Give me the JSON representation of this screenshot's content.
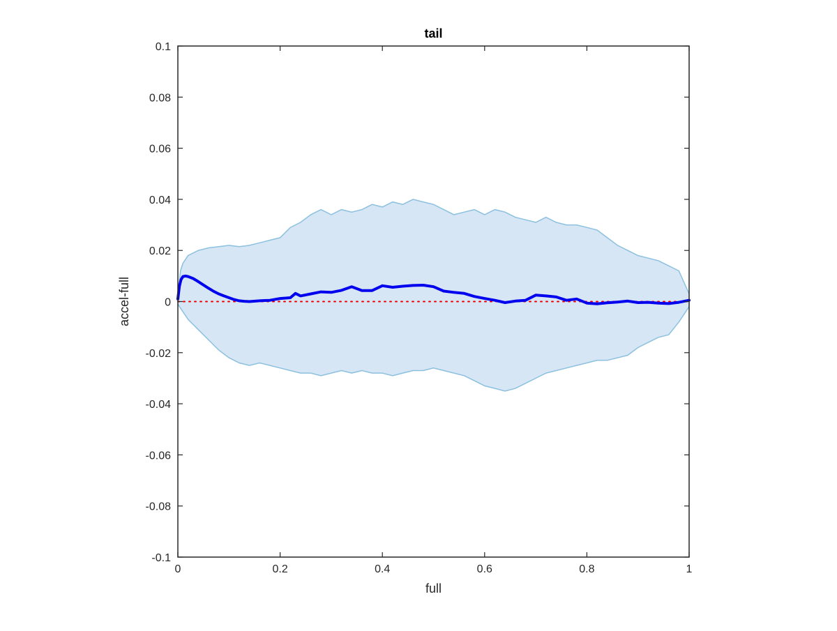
{
  "chart_data": {
    "type": "area",
    "title": "tail",
    "xlabel": "full",
    "ylabel": "accel-full",
    "xlim": [
      0,
      1
    ],
    "ylim": [
      -0.1,
      0.1
    ],
    "grid": false,
    "legend": "none",
    "x_ticks": [
      0,
      0.2,
      0.4,
      0.6,
      0.8,
      1
    ],
    "x_tick_labels": [
      "0",
      "0.2",
      "0.4",
      "0.6",
      "0.8",
      "1"
    ],
    "y_ticks": [
      -0.1,
      -0.08,
      -0.06,
      -0.04,
      -0.02,
      0,
      0.02,
      0.04,
      0.06,
      0.08,
      0.1
    ],
    "y_tick_labels": [
      "-0.1",
      "-0.08",
      "-0.06",
      "-0.04",
      "-0.02",
      "0",
      "0.02",
      "0.04",
      "0.06",
      "0.08",
      "0.1"
    ],
    "colors": {
      "band_fill": "#d6e6f4",
      "band_edge": "#8cc0df",
      "mean_line": "#0000ee",
      "zero_line": "#ee0000",
      "axes": "#262626"
    },
    "band_upper": {
      "x": [
        0,
        0.005,
        0.01,
        0.02,
        0.04,
        0.06,
        0.08,
        0.1,
        0.12,
        0.14,
        0.16,
        0.18,
        0.2,
        0.22,
        0.24,
        0.26,
        0.28,
        0.3,
        0.32,
        0.34,
        0.36,
        0.38,
        0.4,
        0.42,
        0.44,
        0.46,
        0.48,
        0.5,
        0.52,
        0.54,
        0.56,
        0.58,
        0.6,
        0.62,
        0.64,
        0.66,
        0.68,
        0.7,
        0.72,
        0.74,
        0.76,
        0.78,
        0.8,
        0.82,
        0.84,
        0.86,
        0.88,
        0.9,
        0.92,
        0.94,
        0.96,
        0.98,
        1.0
      ],
      "y": [
        0.001,
        0.012,
        0.015,
        0.018,
        0.02,
        0.021,
        0.0215,
        0.022,
        0.0215,
        0.022,
        0.023,
        0.024,
        0.025,
        0.029,
        0.031,
        0.034,
        0.036,
        0.034,
        0.036,
        0.035,
        0.036,
        0.038,
        0.037,
        0.039,
        0.038,
        0.04,
        0.039,
        0.038,
        0.036,
        0.034,
        0.035,
        0.036,
        0.034,
        0.036,
        0.035,
        0.033,
        0.032,
        0.031,
        0.033,
        0.031,
        0.03,
        0.03,
        0.029,
        0.028,
        0.025,
        0.022,
        0.02,
        0.018,
        0.017,
        0.016,
        0.014,
        0.012,
        0.003
      ]
    },
    "band_lower": {
      "x": [
        0,
        0.01,
        0.02,
        0.04,
        0.06,
        0.08,
        0.1,
        0.12,
        0.14,
        0.16,
        0.18,
        0.2,
        0.22,
        0.24,
        0.26,
        0.28,
        0.3,
        0.32,
        0.34,
        0.36,
        0.38,
        0.4,
        0.42,
        0.44,
        0.46,
        0.48,
        0.5,
        0.52,
        0.54,
        0.56,
        0.58,
        0.6,
        0.62,
        0.64,
        0.66,
        0.68,
        0.7,
        0.72,
        0.74,
        0.76,
        0.78,
        0.8,
        0.82,
        0.84,
        0.86,
        0.88,
        0.9,
        0.92,
        0.94,
        0.96,
        0.98,
        1.0
      ],
      "y": [
        -0.001,
        -0.004,
        -0.007,
        -0.011,
        -0.015,
        -0.019,
        -0.022,
        -0.024,
        -0.025,
        -0.024,
        -0.025,
        -0.026,
        -0.027,
        -0.028,
        -0.028,
        -0.029,
        -0.028,
        -0.027,
        -0.028,
        -0.027,
        -0.028,
        -0.028,
        -0.029,
        -0.028,
        -0.027,
        -0.027,
        -0.026,
        -0.027,
        -0.028,
        -0.029,
        -0.031,
        -0.033,
        -0.034,
        -0.035,
        -0.034,
        -0.032,
        -0.03,
        -0.028,
        -0.027,
        -0.026,
        -0.025,
        -0.024,
        -0.023,
        -0.023,
        -0.022,
        -0.021,
        -0.018,
        -0.016,
        -0.014,
        -0.013,
        -0.008,
        -0.002
      ]
    },
    "series": [
      {
        "x": [
          0,
          0.003,
          0.006,
          0.01,
          0.015,
          0.02,
          0.03,
          0.04,
          0.05,
          0.06,
          0.07,
          0.08,
          0.09,
          0.1,
          0.11,
          0.12,
          0.13,
          0.14,
          0.16,
          0.18,
          0.2,
          0.22,
          0.23,
          0.24,
          0.26,
          0.28,
          0.3,
          0.32,
          0.34,
          0.36,
          0.38,
          0.4,
          0.42,
          0.44,
          0.46,
          0.48,
          0.5,
          0.52,
          0.54,
          0.56,
          0.58,
          0.6,
          0.62,
          0.64,
          0.66,
          0.68,
          0.7,
          0.72,
          0.74,
          0.76,
          0.78,
          0.8,
          0.82,
          0.84,
          0.86,
          0.88,
          0.9,
          0.92,
          0.94,
          0.96,
          0.98,
          1.0
        ],
        "y": [
          0.001,
          0.006,
          0.0085,
          0.0098,
          0.01,
          0.0098,
          0.009,
          0.0078,
          0.0065,
          0.0052,
          0.004,
          0.003,
          0.0022,
          0.0015,
          0.0008,
          0.0003,
          0.0001,
          0.0,
          0.0003,
          0.0005,
          0.0012,
          0.0015,
          0.0032,
          0.0022,
          0.003,
          0.0038,
          0.0036,
          0.0044,
          0.0058,
          0.0043,
          0.0043,
          0.0062,
          0.0056,
          0.006,
          0.0063,
          0.0064,
          0.0058,
          0.0041,
          0.0036,
          0.0032,
          0.002,
          0.0012,
          0.0005,
          -0.0004,
          0.0002,
          0.0005,
          0.0025,
          0.0022,
          0.0018,
          0.0005,
          0.001,
          -0.0006,
          -0.0009,
          -0.0005,
          -0.0002,
          0.0002,
          -0.0004,
          -0.0003,
          -0.0006,
          -0.0008,
          -0.0003,
          0.0005
        ]
      }
    ]
  }
}
